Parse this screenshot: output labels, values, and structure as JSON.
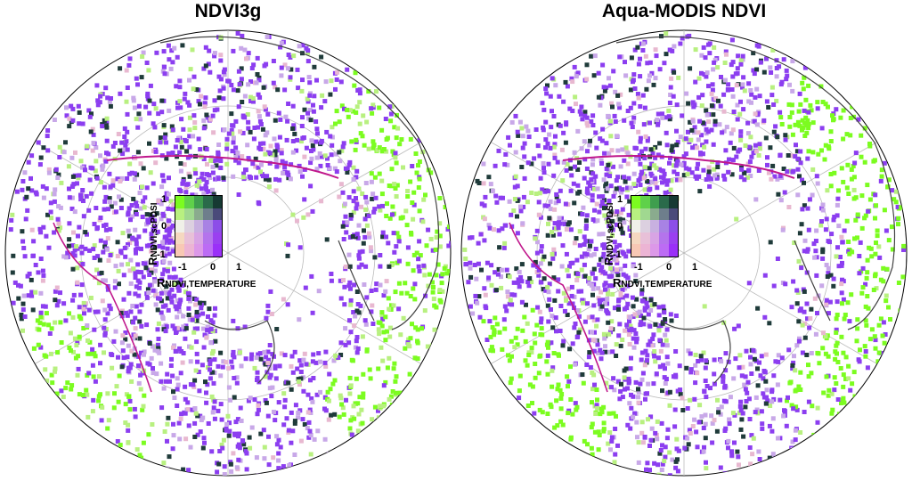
{
  "panels": [
    {
      "title": "NDVI3g"
    },
    {
      "title": "Aqua-MODIS NDVI"
    }
  ],
  "legend": {
    "y_axis": {
      "symbol": "R",
      "subscript": "NDVI,scPDSI",
      "ticks": [
        "1",
        "0",
        "-1"
      ]
    },
    "x_axis": {
      "symbol": "R",
      "subscript": "NDVI,TEMPERATURE",
      "ticks": [
        "-1",
        "0",
        "1"
      ]
    },
    "colors": [
      [
        "#7cfc20",
        "#5fd14a",
        "#3f9e4e",
        "#2a6a4a",
        "#163a33"
      ],
      [
        "#b8f080",
        "#a0d890",
        "#8aab8e",
        "#6e7e8c",
        "#4a4a7a"
      ],
      [
        "#f0f0e8",
        "#dcd0e0",
        "#c8b0e0",
        "#a882e4",
        "#8c4ee8"
      ],
      [
        "#f5d8c0",
        "#e8c0d8",
        "#d8a4e4",
        "#b474ec",
        "#9a40f0"
      ],
      [
        "#f8c8b4",
        "#ecb4d4",
        "#dc98e8",
        "#bc6cf4",
        "#9a30f8"
      ]
    ]
  },
  "map_colors": {
    "green": "#7cfc20",
    "light_green": "#b8f080",
    "purple": "#8c3ef0",
    "light_purple": "#c8a8e8",
    "dark": "#1f3b3a",
    "pink": "#e8b8d0",
    "boundary_magenta": "#c0188c"
  }
}
